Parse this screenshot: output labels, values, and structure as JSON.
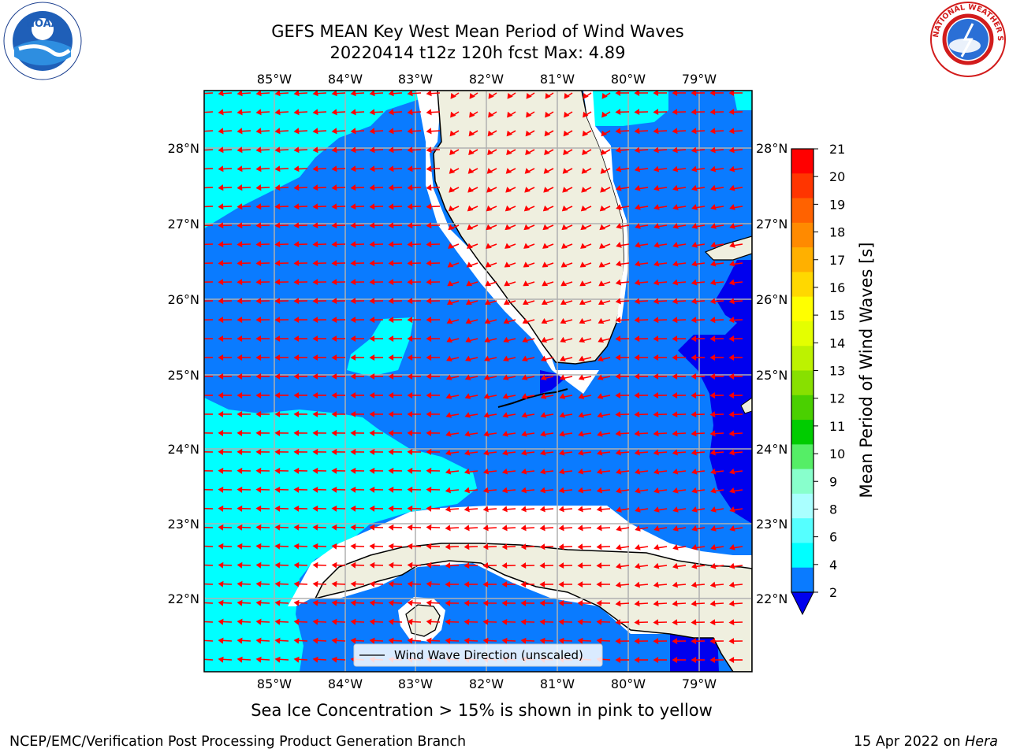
{
  "title": {
    "line1": "GEFS MEAN Key West Mean Period of Wind Waves",
    "line2": "20220414 t12z 120h fcst   Max: 4.89"
  },
  "logos": {
    "left": "noaa-logo",
    "right": "national-weather-service-logo",
    "left_text": "NOAA",
    "right_ring_text": "NATIONAL WEATHER SERVICE"
  },
  "map": {
    "lon_ticks": [
      "85°W",
      "84°W",
      "83°W",
      "82°W",
      "81°W",
      "80°W",
      "79°W"
    ],
    "lat_ticks": [
      "28°N",
      "27°N",
      "26°N",
      "25°N",
      "24°N",
      "23°N",
      "22°N"
    ],
    "legend_label": "Wind Wave Direction (unscaled)",
    "colors": {
      "band_2_4": "#0a7bff",
      "band_4_6": "#00ffff",
      "band_lt_2": "#0000ee",
      "land": "#efefdf",
      "arrow": "#ff0000",
      "grid": "#b0b0b0"
    }
  },
  "colorbar": {
    "label": "Mean Period of Wind Waves [s]",
    "ticks": [
      "21",
      "20",
      "19",
      "18",
      "17",
      "16",
      "15",
      "14",
      "13",
      "12",
      "11",
      "10",
      "9",
      "8",
      "6",
      "4",
      "2"
    ],
    "colors": [
      "#ff0000",
      "#ff3500",
      "#ff6200",
      "#ff8a00",
      "#ffb000",
      "#ffd800",
      "#ffff00",
      "#e4ff00",
      "#bdf200",
      "#88e000",
      "#4ad000",
      "#00cc00",
      "#55ee66",
      "#88ffcc",
      "#aaffff",
      "#55ffff",
      "#00ffff",
      "#0a7bff"
    ],
    "under_color": "#0000ee"
  },
  "notes": {
    "sea_ice": "Sea Ice Concentration > 15% is shown in pink to yellow",
    "credit": "NCEP/EMC/Verification Post Processing Product Generation Branch",
    "date": "15 Apr 2022 on ",
    "machine": "Hera"
  }
}
